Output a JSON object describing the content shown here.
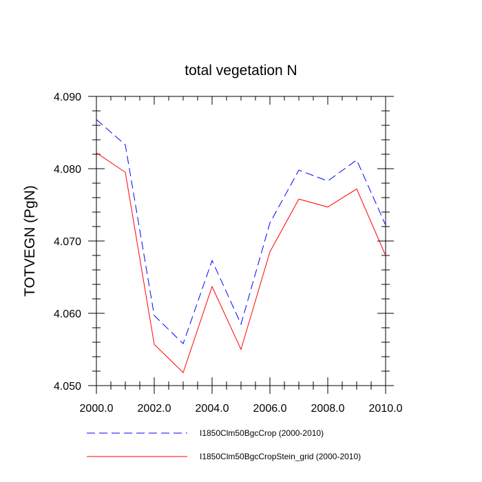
{
  "chart_data": {
    "type": "line",
    "title": "total vegetation N",
    "xlabel": "",
    "ylabel": "TOTVEGN  (PgN)",
    "xlim": [
      2000,
      2010
    ],
    "ylim": [
      4.05,
      4.09
    ],
    "grid": false,
    "legend_position": "bottom",
    "x_ticks": [
      {
        "value": 2000,
        "label": "2000.0"
      },
      {
        "value": 2002,
        "label": "2002.0"
      },
      {
        "value": 2004,
        "label": "2004.0"
      },
      {
        "value": 2006,
        "label": "2006.0"
      },
      {
        "value": 2008,
        "label": "2008.0"
      },
      {
        "value": 2010,
        "label": "2010.0"
      }
    ],
    "y_ticks": [
      {
        "value": 4.05,
        "label": "4.050"
      },
      {
        "value": 4.06,
        "label": "4.060"
      },
      {
        "value": 4.07,
        "label": "4.070"
      },
      {
        "value": 4.08,
        "label": "4.080"
      },
      {
        "value": 4.09,
        "label": "4.090"
      }
    ],
    "x": [
      2000,
      2001,
      2002,
      2003,
      2004,
      2005,
      2006,
      2007,
      2008,
      2009,
      2010
    ],
    "series": [
      {
        "name": "I1850Clm50BgcCrop (2000-2010)",
        "color": "#0000ff",
        "dash": "dashed",
        "values": [
          4.0868,
          4.0833,
          4.0597,
          4.0558,
          4.0673,
          4.0585,
          4.0725,
          4.0798,
          4.0783,
          4.0812,
          4.0722
        ]
      },
      {
        "name": "I1850Clm50BgcCropStein_grid (2000-2010)",
        "color": "#ff0000",
        "dash": "solid",
        "values": [
          4.0822,
          4.0795,
          4.0557,
          4.0518,
          4.0637,
          4.055,
          4.0685,
          4.0758,
          4.0747,
          4.0772,
          4.068
        ]
      }
    ]
  }
}
